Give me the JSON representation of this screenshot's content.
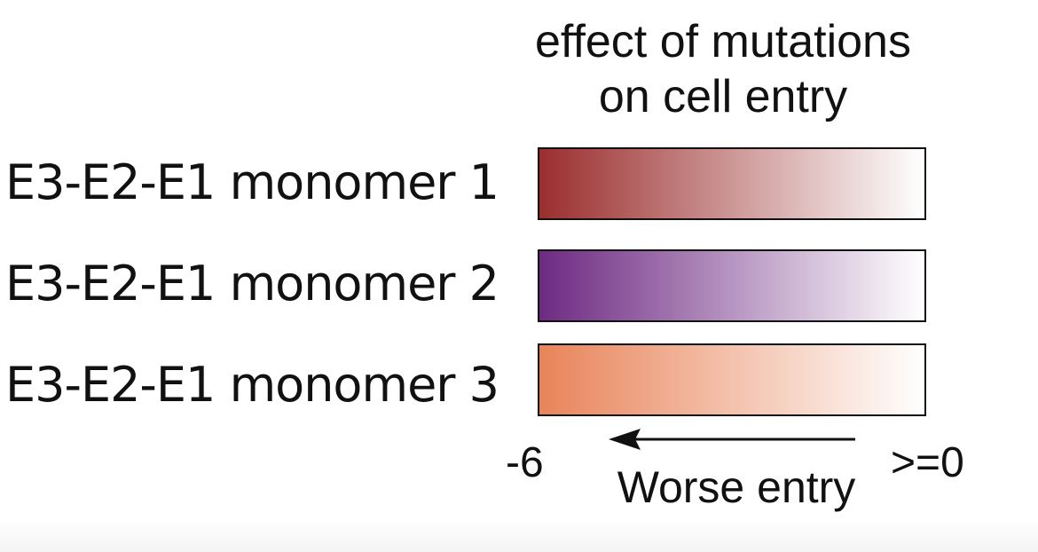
{
  "title": {
    "line1": "effect of mutations",
    "line2": "on cell entry"
  },
  "rows": [
    {
      "label": "E3-E2-E1 monomer 1",
      "color_strong": "#9b2e2e",
      "color_weak": "#ffffff"
    },
    {
      "label": "E3-E2-E1 monomer 2",
      "color_strong": "#6e2a82",
      "color_weak": "#ffffff"
    },
    {
      "label": "E3-E2-E1 monomer 3",
      "color_strong": "#e8845a",
      "color_weak": "#ffffff"
    }
  ],
  "scale": {
    "min_label": "-6",
    "max_label": ">=0",
    "min_value": -6,
    "max_value": 0,
    "direction_label": "Worse entry",
    "arrow_direction": "left"
  }
}
